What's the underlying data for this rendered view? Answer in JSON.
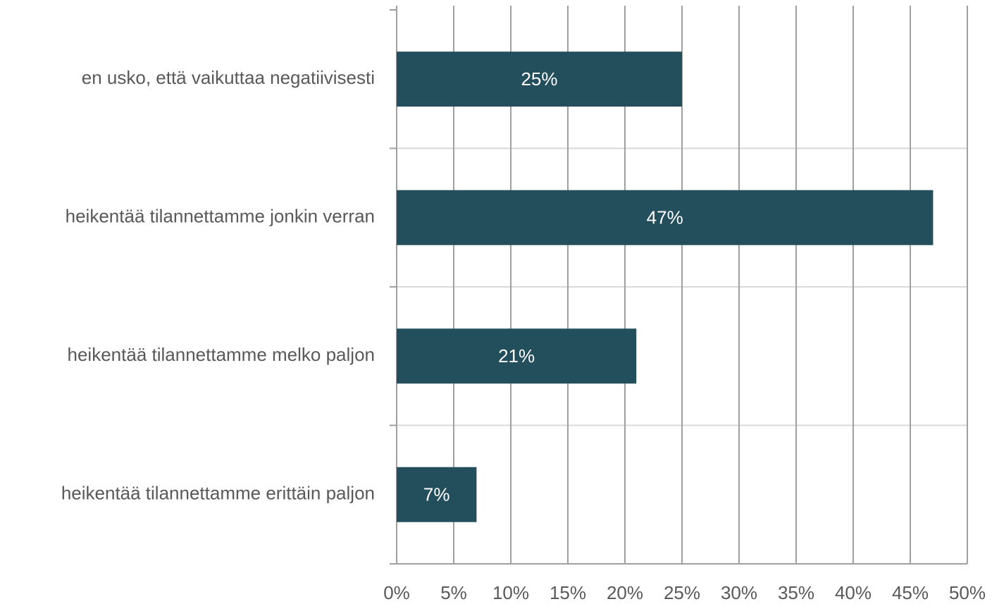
{
  "chart_data": {
    "type": "barh",
    "categories": [
      "en usko, että vaikuttaa negatiivisesti",
      "heikentää tilannettamme jonkin verran",
      "heikentää tilannettamme melko paljon",
      "heikentää tilannettamme erittäin paljon"
    ],
    "values": [
      25,
      47,
      21,
      7
    ],
    "value_labels": [
      "25%",
      "47%",
      "21%",
      "7%"
    ],
    "color": "#234e5c",
    "xlim": [
      0,
      50
    ],
    "xticks": [
      {
        "value": 0,
        "label": "0%"
      },
      {
        "value": 5,
        "label": "5%"
      },
      {
        "value": 10,
        "label": "10%"
      },
      {
        "value": 15,
        "label": "15%"
      },
      {
        "value": 20,
        "label": "20%"
      },
      {
        "value": 25,
        "label": "25%"
      },
      {
        "value": 30,
        "label": "30%"
      },
      {
        "value": 35,
        "label": "35%"
      },
      {
        "value": 40,
        "label": "40%"
      },
      {
        "value": 45,
        "label": "45%"
      },
      {
        "value": 50,
        "label": "50%"
      }
    ],
    "grid": true
  }
}
